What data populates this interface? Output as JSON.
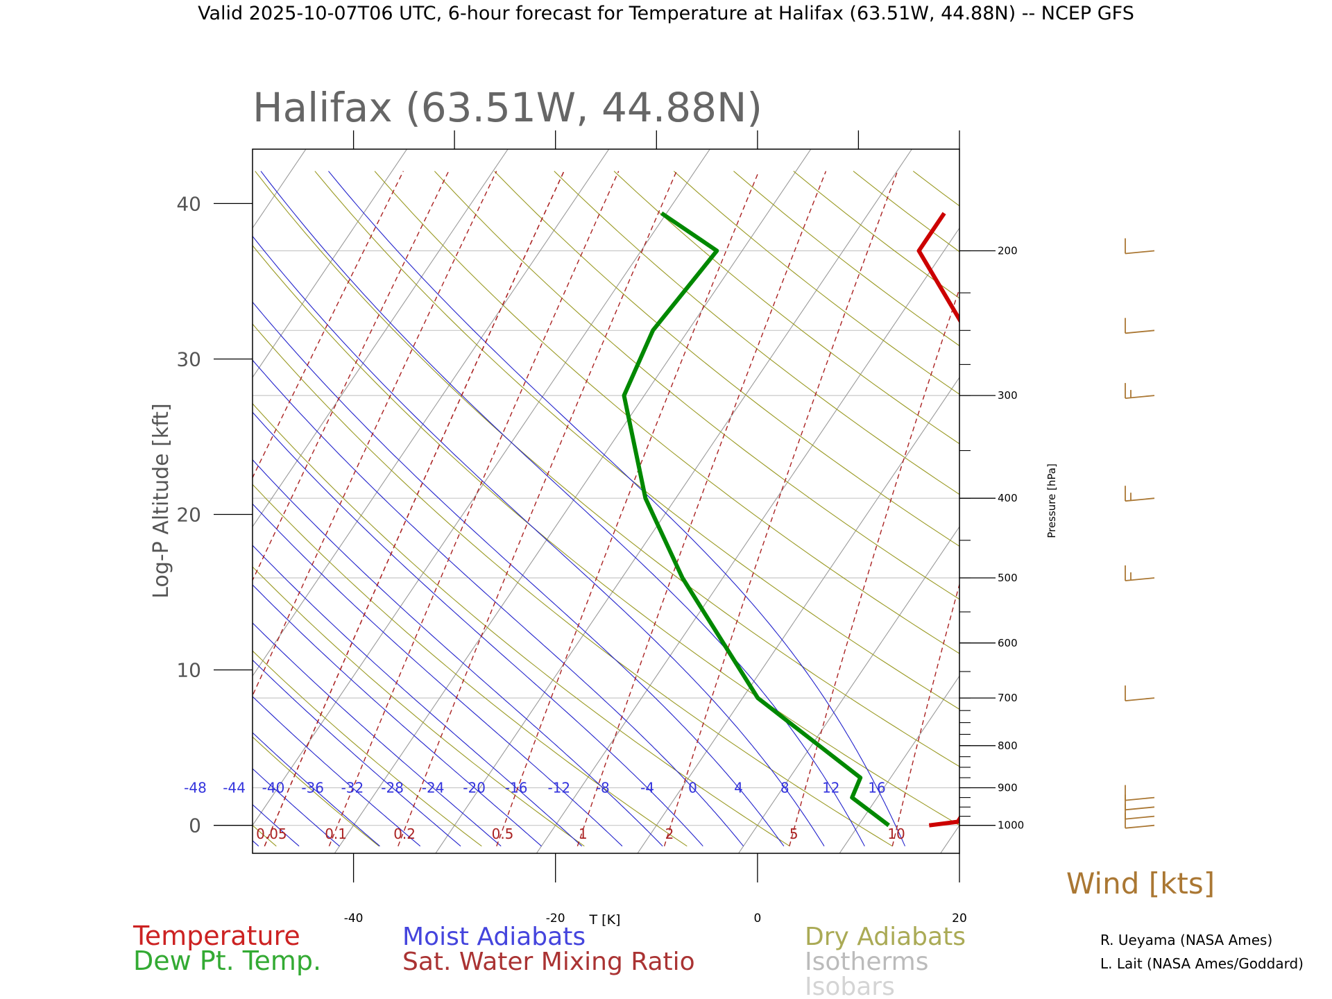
{
  "header": {
    "title": "Valid 2025-10-07T06 UTC, 6-hour forecast for Temperature at Halifax (63.51W, 44.88N) -- NCEP GFS"
  },
  "chart_data": {
    "type": "line",
    "title": "Halifax (63.51W, 44.88N)",
    "xlabel": "T [K]",
    "ylabel": "Log-P Altitude [kft]",
    "y2label": "Pressure [hPa]",
    "xlim": [
      -50,
      20
    ],
    "ylim": [
      -1.8,
      43.5
    ],
    "x_ticks": [
      -40,
      -20,
      0,
      20
    ],
    "y_ticks": [
      0,
      10,
      20,
      30,
      40
    ],
    "pressure_ticks": [
      1000,
      900,
      800,
      700,
      600,
      500,
      400,
      300,
      200
    ],
    "pressure_minor_ticks": [
      975,
      950,
      925,
      900,
      875,
      850,
      825,
      800,
      775,
      750,
      725,
      700,
      650,
      600,
      550,
      500,
      450,
      400,
      350,
      300,
      275,
      250,
      225,
      200
    ],
    "isobars_hpa": [
      1000,
      900,
      700,
      500,
      400,
      300,
      250,
      200
    ],
    "moist_adiabat_labels": [
      "-48",
      "-44",
      "-40",
      "-36",
      "-32",
      "-28",
      "-24",
      "-20",
      "-16",
      "-12",
      "-8",
      "-4",
      "0",
      "4",
      "8",
      "12",
      "16"
    ],
    "moist_adiabat_temps": [
      -48,
      -44,
      -40,
      -36,
      -32,
      -28,
      -24,
      -20,
      -16,
      -12,
      -8,
      -4,
      0,
      4,
      8,
      12,
      16
    ],
    "mixing_ratio_labels": [
      "0.05",
      "0.1",
      "0.2",
      "0.5",
      "1",
      "2",
      "5",
      "10"
    ],
    "mixing_ratio_values": [
      0.05,
      0.1,
      0.2,
      0.5,
      1,
      2,
      5,
      10
    ],
    "series": [
      {
        "name": "Temperature",
        "color": "#cc0000",
        "points": [
          {
            "p": 1000,
            "t": 17.0
          },
          {
            "p": 990,
            "t": 19.6
          },
          {
            "p": 700,
            "t": 19.0
          },
          {
            "p": 500,
            "t": 10.8
          },
          {
            "p": 400,
            "t": 3.2
          },
          {
            "p": 300,
            "t": -6.5
          },
          {
            "p": 250,
            "t": -12.5
          },
          {
            "p": 200,
            "t": -22.5
          },
          {
            "p": 180,
            "t": -22.5
          }
        ]
      },
      {
        "name": "Dew Pt. Temp.",
        "color": "#008800",
        "points": [
          {
            "p": 1000,
            "t": 13.0
          },
          {
            "p": 925,
            "t": 7.5
          },
          {
            "p": 875,
            "t": 7.0
          },
          {
            "p": 700,
            "t": -8.5
          },
          {
            "p": 500,
            "t": -24.0
          },
          {
            "p": 400,
            "t": -33.0
          },
          {
            "p": 300,
            "t": -42.0
          },
          {
            "p": 250,
            "t": -43.5
          },
          {
            "p": 200,
            "t": -42.5
          },
          {
            "p": 180,
            "t": -50.5
          }
        ]
      }
    ],
    "wind": {
      "title": "Wind [kts]",
      "barbs": [
        {
          "p": 1000,
          "speed": 10
        },
        {
          "p": 975,
          "speed": 10
        },
        {
          "p": 950,
          "speed": 10
        },
        {
          "p": 925,
          "speed": 10
        },
        {
          "p": 700,
          "speed": 10
        },
        {
          "p": 500,
          "speed": 15
        },
        {
          "p": 400,
          "speed": 15
        },
        {
          "p": 300,
          "speed": 15
        },
        {
          "p": 250,
          "speed": 10
        },
        {
          "p": 200,
          "speed": 10
        }
      ]
    },
    "legend": [
      {
        "label": "Temperature",
        "color": "#cc0000"
      },
      {
        "label": "Dew Pt. Temp.",
        "color": "#009900"
      },
      {
        "label": "Moist Adiabats",
        "color": "#3333dd"
      },
      {
        "label": "Sat. Water Mixing Ratio",
        "color": "#aa2222"
      },
      {
        "label": "Dry Adiabats",
        "color": "#999933"
      },
      {
        "label": "Isotherms",
        "color": "#aaaaaa"
      },
      {
        "label": "Isobars",
        "color": "#cccccc"
      }
    ],
    "credits": [
      "R. Ueyama (NASA Ames)",
      "L. Lait (NASA Ames/Goddard)"
    ]
  }
}
